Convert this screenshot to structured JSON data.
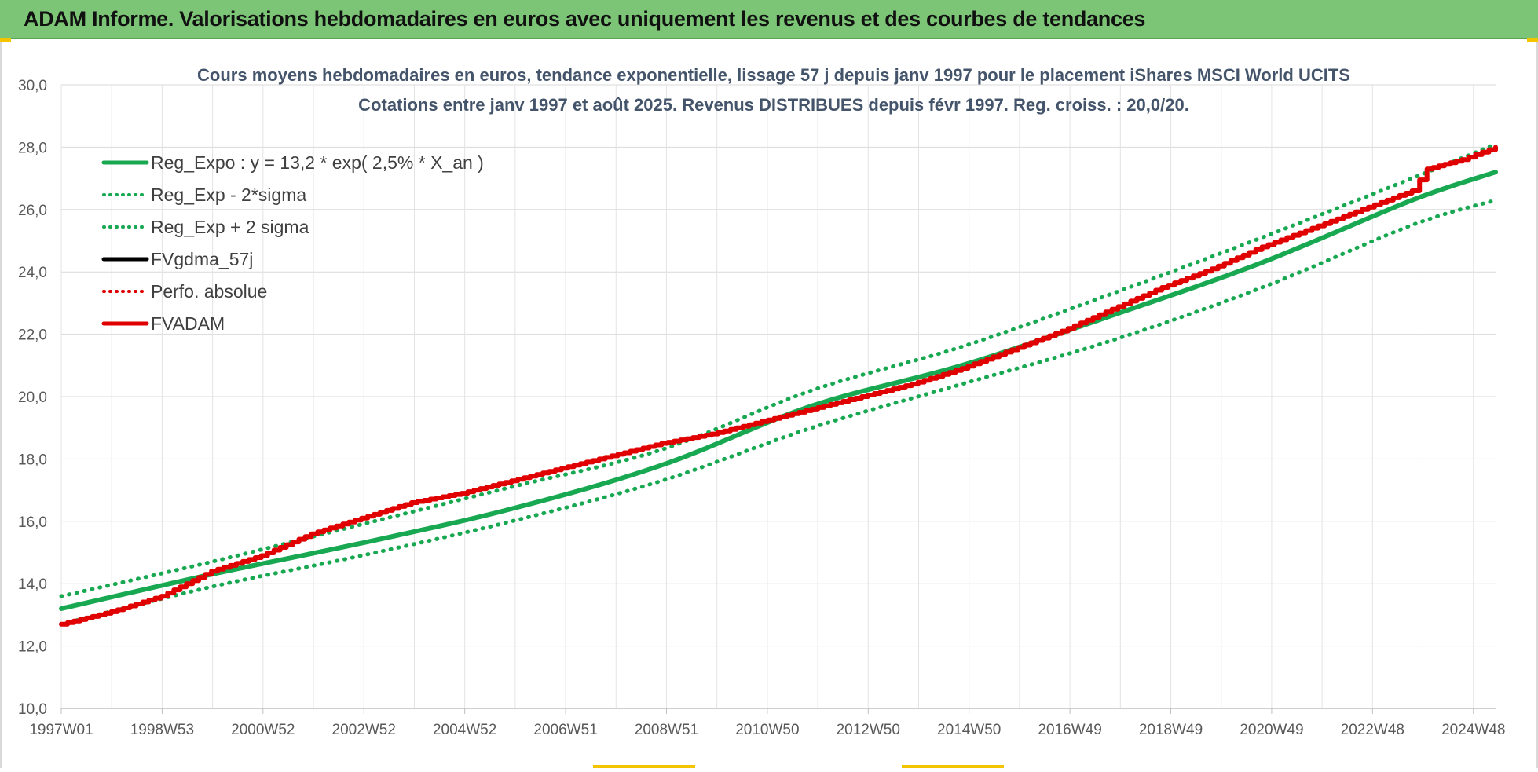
{
  "header": {
    "title": "ADAM Informe. Valorisations hebdomadaires en euros avec uniquement les revenus et des courbes de tendances"
  },
  "chart_data": {
    "type": "line",
    "title_line1": "Cours moyens hebdomadaires en euros, tendance exponentielle, lissage 57 j depuis janv 1997 pour le placement iShares MSCI World UCITS",
    "title_line2": "Cotations entre janv 1997 et août 2025.  Revenus DISTRIBUES depuis févr 1997.  Reg. croiss. : 20,0/20.",
    "ylim": [
      10,
      30
    ],
    "y_ticks": [
      "10,0",
      "12,0",
      "14,0",
      "16,0",
      "18,0",
      "20,0",
      "22,0",
      "24,0",
      "26,0",
      "28,0",
      "30,0"
    ],
    "x_range": [
      1997.0,
      2025.67
    ],
    "x_ticks": [
      "1997W01",
      "1998W53",
      "2000W52",
      "2002W52",
      "2004W52",
      "2006W51",
      "2008W51",
      "2010W50",
      "2012W50",
      "2014W50",
      "2016W49",
      "2018W49",
      "2020W49",
      "2022W48",
      "2024W48"
    ],
    "grid": true,
    "legend_position": "top-left",
    "legend": [
      {
        "label": "Reg_Expo : y = 13,2 * exp( 2,5% *  X_an )",
        "color": "#18a852",
        "style": "solid"
      },
      {
        "label": "Reg_Exp - 2*sigma",
        "color": "#18a852",
        "style": "dotted"
      },
      {
        "label": "Reg_Exp + 2 sigma",
        "color": "#18a852",
        "style": "dotted"
      },
      {
        "label": "FVgdma_57j",
        "color": "#000000",
        "style": "solid"
      },
      {
        "label": "Perfo. absolue",
        "color": "#e00000",
        "style": "dotted"
      },
      {
        "label": "FVADAM",
        "color": "#e00000",
        "style": "solid"
      }
    ],
    "series": [
      {
        "name": "Reg_Expo : y = 13,2 * exp( 2,5% *  X_an )",
        "x": [
          1997,
          2000,
          2003,
          2006,
          2009,
          2012,
          2015,
          2018,
          2021,
          2024,
          2025.67
        ],
        "values": [
          13.2,
          14.3,
          15.3,
          16.4,
          17.8,
          19.7,
          21.0,
          22.6,
          24.3,
          26.3,
          27.2
        ]
      },
      {
        "name": "Reg_Exp - 2*sigma",
        "x": [
          1997,
          2000,
          2003,
          2006,
          2009,
          2012,
          2015,
          2018,
          2021,
          2024,
          2025.67
        ],
        "values": [
          12.7,
          13.9,
          14.9,
          16.0,
          17.3,
          19.0,
          20.4,
          21.8,
          23.5,
          25.5,
          26.3
        ]
      },
      {
        "name": "Reg_Exp + 2 sigma",
        "x": [
          1997,
          2000,
          2003,
          2006,
          2009,
          2012,
          2015,
          2018,
          2021,
          2024,
          2025.67
        ],
        "values": [
          13.6,
          14.7,
          15.9,
          17.1,
          18.3,
          20.2,
          21.6,
          23.3,
          25.1,
          27.0,
          28.1
        ]
      },
      {
        "name": "FVgdma_57j",
        "x": [
          1997,
          1998,
          1999,
          2000,
          2001,
          2002,
          2003,
          2004,
          2005,
          2006,
          2007,
          2008,
          2009,
          2010,
          2011,
          2012,
          2013,
          2014,
          2015,
          2016,
          2017,
          2018,
          2019,
          2020,
          2021,
          2022,
          2023,
          2024,
          2024.3,
          2025,
          2025.67
        ],
        "values": [
          12.7,
          13.1,
          13.6,
          14.4,
          14.9,
          15.6,
          16.1,
          16.6,
          16.9,
          17.3,
          17.7,
          18.1,
          18.5,
          18.8,
          19.2,
          19.6,
          20.0,
          20.4,
          20.9,
          21.5,
          22.1,
          22.8,
          23.5,
          24.1,
          24.8,
          25.4,
          26.0,
          26.6,
          27.3,
          27.6,
          28.0
        ]
      },
      {
        "name": "FVADAM",
        "x": [
          1997,
          1998,
          1999,
          2000,
          2001,
          2002,
          2003,
          2004,
          2005,
          2006,
          2007,
          2008,
          2009,
          2010,
          2011,
          2012,
          2013,
          2014,
          2015,
          2016,
          2017,
          2018,
          2019,
          2020,
          2021,
          2022,
          2023,
          2024,
          2024.3,
          2025,
          2025.67
        ],
        "values": [
          12.7,
          13.1,
          13.6,
          14.4,
          14.9,
          15.6,
          16.1,
          16.6,
          16.9,
          17.3,
          17.7,
          18.1,
          18.5,
          18.8,
          19.2,
          19.6,
          20.0,
          20.4,
          20.9,
          21.5,
          22.1,
          22.8,
          23.5,
          24.1,
          24.8,
          25.4,
          26.0,
          26.6,
          27.3,
          27.6,
          28.0
        ]
      }
    ]
  }
}
